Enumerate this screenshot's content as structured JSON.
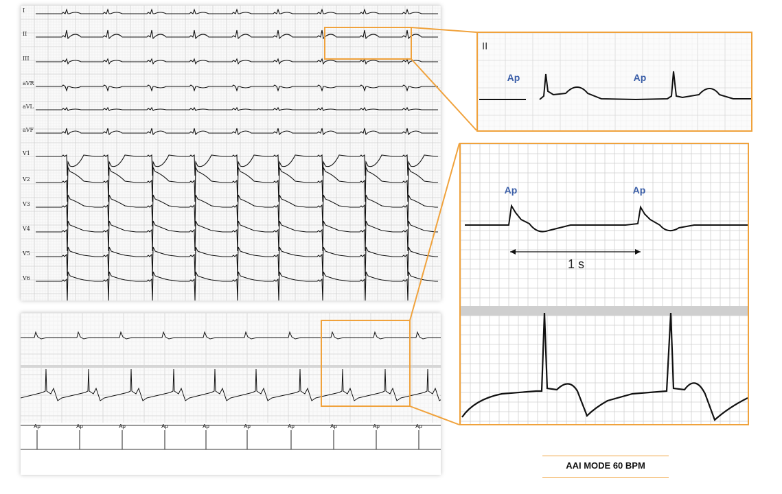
{
  "ecg12": {
    "leads": [
      "I",
      "II",
      "III",
      "aVR",
      "aVL",
      "aVF",
      "V1",
      "V2",
      "V3",
      "V4",
      "V5",
      "V6"
    ]
  },
  "zoom_top": {
    "lead_label": "II",
    "markers": [
      "Ap",
      "Ap"
    ]
  },
  "zoom_bottom": {
    "markers": [
      "Ap",
      "Ap"
    ],
    "interval_label": "1 s"
  },
  "strip": {
    "pacing_markers": [
      "Ap",
      "Ap",
      "Ap",
      "Ap",
      "Ap",
      "Ap",
      "Ap",
      "Ap",
      "Ap",
      "Ap"
    ]
  },
  "caption": {
    "text": "AAI MODE 60 BPM"
  },
  "colors": {
    "highlight": "#f0a23c",
    "marker_blue": "#3a5ea8",
    "trace": "#111111"
  }
}
